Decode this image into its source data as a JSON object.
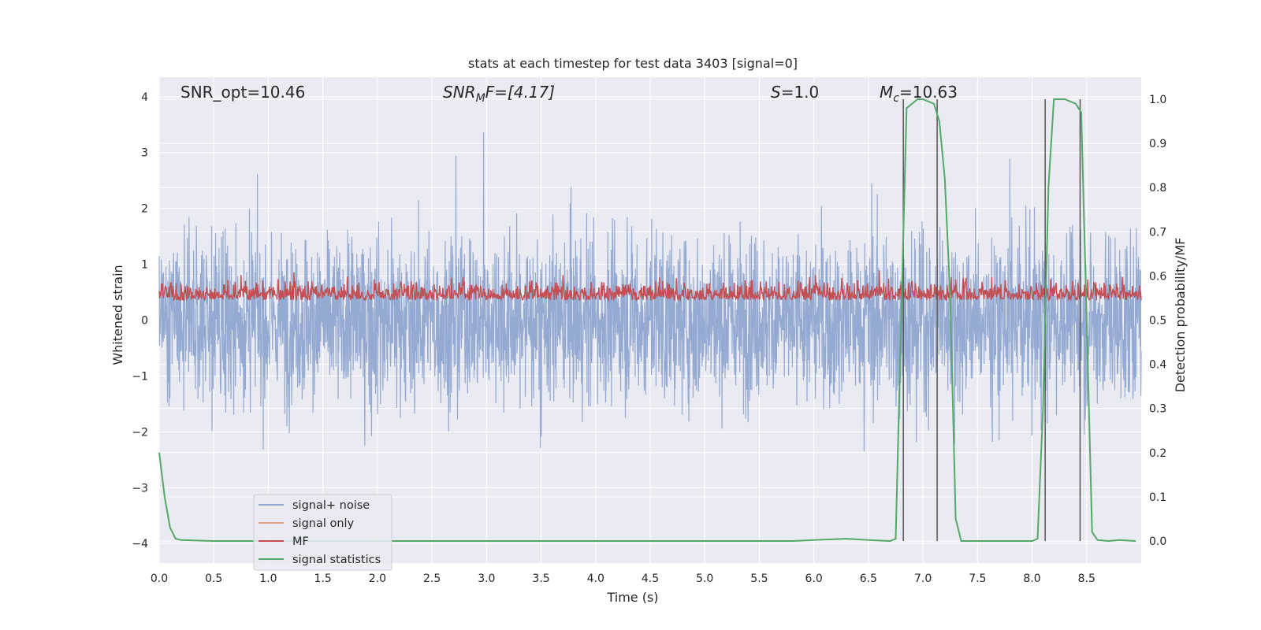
{
  "chart_data": {
    "type": "line",
    "title": "stats at each timestep for test data 3403 [signal=0]",
    "xlabel": "Time (s)",
    "ylabel_left": "Whitened strain",
    "ylabel_right": "Detection probability/MF",
    "xlim": [
      0,
      9
    ],
    "ylim_left": [
      -4.35,
      4.35
    ],
    "ylim_right": [
      -0.05,
      1.05
    ],
    "x_ticks": [
      "0.0",
      "0.5",
      "1.0",
      "1.5",
      "2.0",
      "2.5",
      "3.0",
      "3.5",
      "4.0",
      "4.5",
      "5.0",
      "5.5",
      "6.0",
      "6.5",
      "7.0",
      "7.5",
      "8.0",
      "8.5"
    ],
    "y_ticks_left": [
      "4",
      "3",
      "2",
      "1",
      "0",
      "−1",
      "−2",
      "−3",
      "−4"
    ],
    "y_ticks_right": [
      "1.0",
      "0.9",
      "0.8",
      "0.7",
      "0.6",
      "0.5",
      "0.4",
      "0.3",
      "0.2",
      "0.1",
      "0.0"
    ],
    "grid": true,
    "annotations": {
      "snr_opt": "SNR_opt=10.46",
      "snr_mf_main": "SNR",
      "snr_mf_sub": "M",
      "snr_mf_rest": "F=[4.17]",
      "s_main": "S",
      "s_rest": "=1.0",
      "mc_main": "M",
      "mc_sub": "c",
      "mc_rest": "=10.63"
    },
    "legend_placement": "lower-left",
    "series": [
      {
        "name": "signal+ noise",
        "color": "#8fa6d0",
        "description": "dense noise trace, roughly between -2.5 and 2.5, peaks near 3.6 / -4"
      },
      {
        "name": "signal only",
        "color": "#e8a487",
        "values": []
      },
      {
        "name": "MF",
        "color": "#c44e52",
        "range_right_axis": [
          0.5,
          0.64
        ]
      },
      {
        "name": "signal statistics",
        "color": "#55a868",
        "x": [
          0.0,
          0.05,
          0.1,
          0.15,
          0.2,
          0.5,
          1.0,
          2.0,
          3.0,
          4.0,
          5.0,
          5.8,
          6.0,
          6.3,
          6.5,
          6.7,
          6.75,
          6.8,
          6.85,
          6.9,
          6.95,
          7.0,
          7.1,
          7.15,
          7.2,
          7.25,
          7.3,
          7.35,
          7.4,
          7.6,
          7.8,
          8.0,
          8.05,
          8.1,
          8.15,
          8.2,
          8.3,
          8.4,
          8.45,
          8.5,
          8.55,
          8.6,
          8.7,
          8.8,
          8.95
        ],
        "y": [
          0.2,
          0.1,
          0.03,
          0.005,
          0.002,
          0.0,
          0.0,
          0.0,
          0.0,
          0.0,
          0.0,
          0.0,
          0.002,
          0.005,
          0.002,
          0.0,
          0.005,
          0.5,
          0.98,
          0.99,
          1.0,
          1.0,
          0.99,
          0.95,
          0.82,
          0.55,
          0.05,
          0.0,
          0.0,
          0.0,
          0.0,
          0.0,
          0.005,
          0.3,
          0.8,
          1.0,
          1.0,
          0.99,
          0.97,
          0.5,
          0.02,
          0.002,
          0.0,
          0.002,
          0.0
        ]
      }
    ],
    "vertical_lines_x": [
      6.82,
      7.13,
      8.12,
      8.44
    ],
    "vertical_line_color": "#555555"
  },
  "colors": {
    "axes_background": "#eaeaf2",
    "grid": "#ffffff",
    "text": "#262626"
  }
}
